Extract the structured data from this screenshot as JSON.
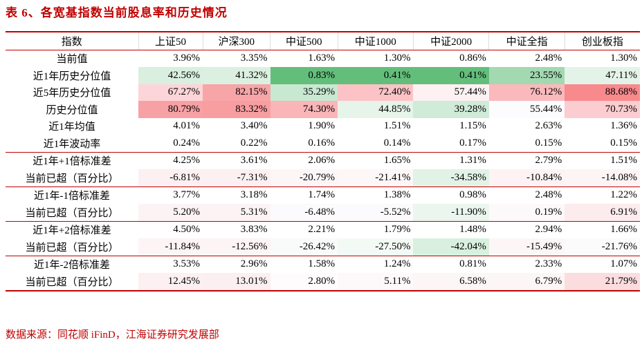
{
  "header": {
    "title": "表 6、各宽基指数当前股息率和历史情况"
  },
  "table": {
    "columns": [
      "指数",
      "上证50",
      "沪深300",
      "中证500",
      "中证1000",
      "中证2000",
      "中证全指",
      "创业板指"
    ],
    "rows": [
      [
        "当前值",
        "3.96%",
        "3.35%",
        "1.63%",
        "1.30%",
        "0.86%",
        "2.48%",
        "1.30%"
      ],
      [
        "近1年历史分位值",
        "42.56%",
        "41.32%",
        "0.83%",
        "0.41%",
        "0.41%",
        "23.55%",
        "47.11%"
      ],
      [
        "近5年历史分位值",
        "67.27%",
        "82.15%",
        "35.29%",
        "72.40%",
        "57.44%",
        "76.12%",
        "88.68%"
      ],
      [
        "历史分位值",
        "80.79%",
        "83.32%",
        "74.30%",
        "44.85%",
        "39.28%",
        "55.44%",
        "70.73%"
      ],
      [
        "近1年均值",
        "4.01%",
        "3.40%",
        "1.90%",
        "1.51%",
        "1.15%",
        "2.63%",
        "1.36%"
      ],
      [
        "近1年波动率",
        "0.24%",
        "0.22%",
        "0.16%",
        "0.14%",
        "0.17%",
        "0.15%",
        "0.15%"
      ],
      [
        "近1年+1倍标准差",
        "4.25%",
        "3.61%",
        "2.06%",
        "1.65%",
        "1.31%",
        "2.79%",
        "1.51%"
      ],
      [
        "当前已超（百分比）",
        "-6.81%",
        "-7.31%",
        "-20.79%",
        "-21.41%",
        "-34.58%",
        "-10.84%",
        "-14.08%"
      ],
      [
        "近1年-1倍标准差",
        "3.77%",
        "3.18%",
        "1.74%",
        "1.38%",
        "0.98%",
        "2.48%",
        "1.22%"
      ],
      [
        "当前已超（百分比）",
        "5.20%",
        "5.31%",
        "-6.48%",
        "-5.52%",
        "-11.90%",
        "0.19%",
        "6.91%"
      ],
      [
        "近1年+2倍标准差",
        "4.50%",
        "3.83%",
        "2.21%",
        "1.79%",
        "1.48%",
        "2.94%",
        "1.66%"
      ],
      [
        "当前已超（百分比）",
        "-11.84%",
        "-12.56%",
        "-26.42%",
        "-27.50%",
        "-42.04%",
        "-15.49%",
        "-21.76%"
      ],
      [
        "近1年-2倍标准差",
        "3.53%",
        "2.96%",
        "1.58%",
        "1.24%",
        "0.81%",
        "2.33%",
        "1.07%"
      ],
      [
        "当前已超（百分比）",
        "12.45%",
        "13.01%",
        "2.80%",
        "5.11%",
        "6.58%",
        "6.79%",
        "21.79%"
      ]
    ]
  },
  "footer": {
    "source": "数据来源：同花顺 iFinD，江海证券研究发展部"
  }
}
